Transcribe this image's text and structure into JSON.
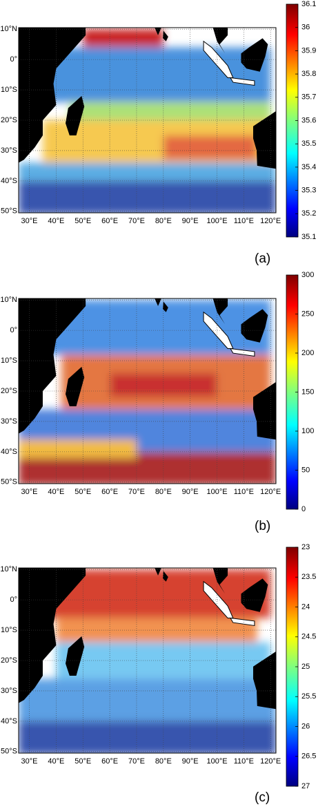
{
  "map": {
    "xlim": [
      26,
      122
    ],
    "ylim": [
      -50.5,
      10.5
    ],
    "xticks": [
      {
        "value": 30,
        "label": "30°E"
      },
      {
        "value": 40,
        "label": "40°E"
      },
      {
        "value": 50,
        "label": "50°E"
      },
      {
        "value": 60,
        "label": "60°E"
      },
      {
        "value": 70,
        "label": "70°E"
      },
      {
        "value": 80,
        "label": "80°E"
      },
      {
        "value": 90,
        "label": "90°E"
      },
      {
        "value": 100,
        "label": "100°E"
      },
      {
        "value": 110,
        "label": "110°E"
      },
      {
        "value": 120,
        "label": "120°E"
      }
    ],
    "yticks": [
      {
        "value": 10,
        "label": "10°N"
      },
      {
        "value": 0,
        "label": "0°"
      },
      {
        "value": -10,
        "label": "10°S"
      },
      {
        "value": -20,
        "label": "20°S"
      },
      {
        "value": -30,
        "label": "30°S"
      },
      {
        "value": -40,
        "label": "40°S"
      },
      {
        "value": -50,
        "label": "50°S"
      }
    ],
    "grid": true
  },
  "panels": [
    {
      "label": "(a)",
      "colorbar": {
        "lim": [
          35.1,
          36.1
        ],
        "ticks": [
          35.1,
          35.2,
          35.3,
          35.4,
          35.5,
          35.6,
          35.7,
          35.8,
          35.9,
          36,
          36.1
        ]
      }
    },
    {
      "label": "(b)",
      "colorbar": {
        "lim": [
          0,
          300
        ],
        "ticks": [
          0,
          50,
          100,
          150,
          200,
          250,
          300
        ]
      }
    },
    {
      "label": "(c)",
      "colorbar": {
        "lim": [
          27,
          23
        ],
        "ticks": [
          23,
          23.5,
          24,
          24.5,
          25,
          25.5,
          26,
          26.5,
          27
        ]
      }
    }
  ]
}
